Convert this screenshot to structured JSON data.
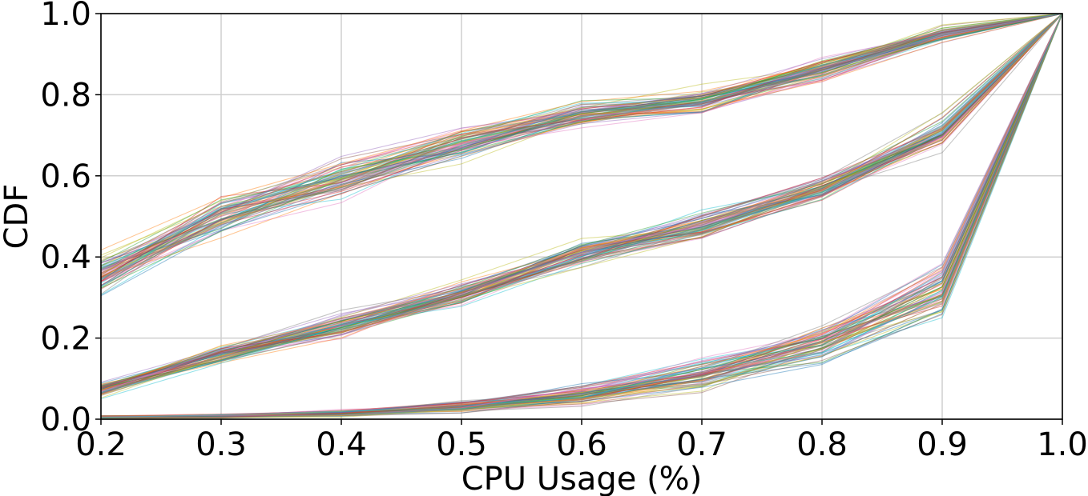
{
  "chart_data": {
    "type": "line",
    "xlabel": "CPU Usage (%)",
    "ylabel": "CDF",
    "x": [
      0.2,
      0.3,
      0.4,
      0.5,
      0.6,
      0.7,
      0.8,
      0.9,
      1.0
    ],
    "xlim": [
      0.2,
      1.0
    ],
    "ylim": [
      0.0,
      1.0
    ],
    "xticks": [
      "0.2",
      "0.3",
      "0.4",
      "0.5",
      "0.6",
      "0.7",
      "0.8",
      "0.9",
      "1.0"
    ],
    "yticks": [
      "0.0",
      "0.2",
      "0.4",
      "0.6",
      "0.8",
      "1.0"
    ],
    "grid": true,
    "series_groups": [
      {
        "mean": [
          0.35,
          0.5,
          0.59,
          0.68,
          0.75,
          0.78,
          0.86,
          0.95,
          1.0
        ],
        "spread": [
          0.04,
          0.035,
          0.035,
          0.03,
          0.025,
          0.025,
          0.02,
          0.015,
          0.0
        ],
        "count": 70
      },
      {
        "mean": [
          0.075,
          0.16,
          0.23,
          0.31,
          0.41,
          0.48,
          0.57,
          0.71,
          1.0
        ],
        "spread": [
          0.015,
          0.02,
          0.025,
          0.025,
          0.025,
          0.025,
          0.025,
          0.025,
          0.0
        ],
        "count": 70
      },
      {
        "mean": [
          0.005,
          0.008,
          0.015,
          0.03,
          0.06,
          0.11,
          0.19,
          0.32,
          1.0
        ],
        "spread": [
          0.003,
          0.004,
          0.006,
          0.01,
          0.02,
          0.03,
          0.04,
          0.05,
          0.0
        ],
        "count": 70
      }
    ],
    "colors": [
      "#1f77b4",
      "#ff7f0e",
      "#2ca02c",
      "#d62728",
      "#9467bd",
      "#8c564b",
      "#e377c2",
      "#7f7f7f",
      "#bcbd22",
      "#17becf"
    ],
    "grid_color": "#cfcfcf"
  }
}
